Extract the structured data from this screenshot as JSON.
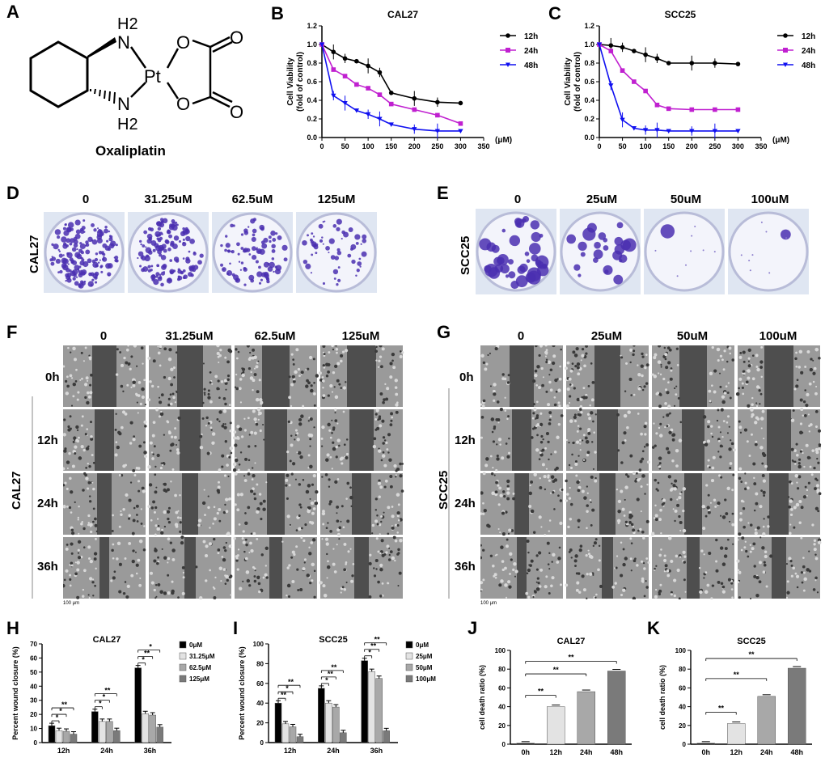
{
  "panel_labels": {
    "A": "A",
    "B": "B",
    "C": "C",
    "D": "D",
    "E": "E",
    "F": "F",
    "G": "G",
    "H": "H",
    "I": "I",
    "J": "J",
    "K": "K"
  },
  "structure": {
    "compound_name": "Oxaliplatin",
    "atoms": {
      "nh2_top": "H2",
      "n_top": "N",
      "nh2_bottom": "H2",
      "n_bottom": "N",
      "pt": "Pt",
      "o1": "O",
      "o2": "O",
      "o3": "O",
      "o4": "O"
    }
  },
  "chart_data": [
    {
      "id": "B",
      "type": "line",
      "title": "CAL27",
      "xlabel": "(μM)",
      "ylabel": "Cell Viability\n(fold of control)",
      "xlim": [
        0,
        350
      ],
      "ylim": [
        0,
        1.2
      ],
      "xticks": [
        "0",
        "50",
        "100",
        "150",
        "200",
        "250",
        "300",
        "350"
      ],
      "yticks": [
        "0.0",
        "0.2",
        "0.4",
        "0.6",
        "0.8",
        "1.0",
        "1.2"
      ],
      "legend": "right",
      "x": [
        0,
        25,
        50,
        75,
        100,
        125,
        150,
        200,
        250,
        300
      ],
      "series": [
        {
          "name": "12h",
          "color": "#000000",
          "marker": "circle",
          "values": [
            1.0,
            0.92,
            0.85,
            0.82,
            0.77,
            0.7,
            0.48,
            0.42,
            0.38,
            0.37
          ]
        },
        {
          "name": "24h",
          "color": "#c020d0",
          "marker": "square",
          "values": [
            1.0,
            0.73,
            0.66,
            0.57,
            0.53,
            0.46,
            0.36,
            0.3,
            0.24,
            0.15
          ]
        },
        {
          "name": "48h",
          "color": "#1010f0",
          "marker": "triangle",
          "values": [
            1.0,
            0.45,
            0.37,
            0.29,
            0.25,
            0.2,
            0.14,
            0.09,
            0.07,
            0.07
          ]
        }
      ]
    },
    {
      "id": "C",
      "type": "line",
      "title": "SCC25",
      "xlabel": "(μM)",
      "ylabel": "Cell Viability\n(fold of control)",
      "xlim": [
        0,
        350
      ],
      "ylim": [
        0,
        1.2
      ],
      "xticks": [
        "0",
        "50",
        "100",
        "150",
        "200",
        "250",
        "300",
        "350"
      ],
      "yticks": [
        "0.0",
        "0.2",
        "0.4",
        "0.6",
        "0.8",
        "1.0",
        "1.2"
      ],
      "legend": "right",
      "x": [
        0,
        25,
        50,
        75,
        100,
        125,
        150,
        200,
        250,
        300
      ],
      "series": [
        {
          "name": "12h",
          "color": "#000000",
          "marker": "circle",
          "values": [
            1.0,
            0.99,
            0.97,
            0.93,
            0.89,
            0.85,
            0.8,
            0.8,
            0.8,
            0.79
          ]
        },
        {
          "name": "24h",
          "color": "#c020d0",
          "marker": "square",
          "values": [
            1.0,
            0.93,
            0.72,
            0.6,
            0.5,
            0.35,
            0.31,
            0.3,
            0.3,
            0.3
          ]
        },
        {
          "name": "48h",
          "color": "#1010f0",
          "marker": "triangle",
          "values": [
            1.0,
            0.56,
            0.19,
            0.1,
            0.08,
            0.08,
            0.07,
            0.07,
            0.07,
            0.07
          ]
        }
      ]
    },
    {
      "id": "H",
      "type": "bar",
      "title": "CAL27",
      "ylabel": "Percent wound closure (%)",
      "ylim": [
        0,
        70
      ],
      "yticks": [
        "0",
        "10",
        "20",
        "30",
        "40",
        "50",
        "60",
        "70"
      ],
      "categories": [
        "12h",
        "24h",
        "36h"
      ],
      "legend": "right",
      "series": [
        {
          "name": "0μM",
          "color": "#000000",
          "values": [
            12,
            22,
            53
          ]
        },
        {
          "name": "31.25μM",
          "color": "#e3e3e3",
          "values": [
            8.5,
            15,
            20.5
          ]
        },
        {
          "name": "62.5μM",
          "color": "#a8a8a8",
          "values": [
            8,
            15,
            19.5
          ]
        },
        {
          "name": "125μM",
          "color": "#7a7a7a",
          "values": [
            6,
            8.5,
            11
          ]
        }
      ],
      "significance": [
        "*",
        "*",
        "**",
        "*",
        "*",
        "**",
        "*",
        "**",
        "*"
      ]
    },
    {
      "id": "I",
      "type": "bar",
      "title": "SCC25",
      "ylabel": "Percent wound closure (%)",
      "ylim": [
        0,
        100
      ],
      "yticks": [
        "0",
        "20",
        "40",
        "60",
        "80",
        "100"
      ],
      "categories": [
        "12h",
        "24h",
        "36h"
      ],
      "legend": "right",
      "series": [
        {
          "name": "0μM",
          "color": "#000000",
          "values": [
            40,
            55,
            83
          ]
        },
        {
          "name": "25μM",
          "color": "#e3e3e3",
          "values": [
            19,
            40,
            72
          ]
        },
        {
          "name": "50μM",
          "color": "#a8a8a8",
          "values": [
            16,
            36,
            65
          ]
        },
        {
          "name": "100μM",
          "color": "#7a7a7a",
          "values": [
            6,
            10,
            12
          ]
        }
      ],
      "significance": [
        "**",
        "*",
        "**",
        "*",
        "**",
        "**",
        "*",
        "**",
        "**"
      ]
    },
    {
      "id": "J",
      "type": "bar",
      "title": "CAL27",
      "ylabel": "cell death ratio (%)",
      "ylim": [
        0,
        100
      ],
      "yticks": [
        "0",
        "20",
        "40",
        "60",
        "80",
        "100"
      ],
      "categories": [
        "0h",
        "12h",
        "24h",
        "48h"
      ],
      "values": [
        1,
        40,
        56,
        78
      ],
      "colors": [
        "#000000",
        "#e3e3e3",
        "#a8a8a8",
        "#7a7a7a"
      ],
      "significance": [
        "**",
        "**",
        "**"
      ]
    },
    {
      "id": "K",
      "type": "bar",
      "title": "SCC25",
      "ylabel": "cell death ratio (%)",
      "ylim": [
        0,
        100
      ],
      "yticks": [
        "0",
        "20",
        "40",
        "60",
        "80",
        "100"
      ],
      "categories": [
        "0h",
        "12h",
        "24h",
        "48h"
      ],
      "values": [
        1,
        22,
        51,
        81
      ],
      "colors": [
        "#000000",
        "#e3e3e3",
        "#a8a8a8",
        "#7a7a7a"
      ],
      "significance": [
        "**",
        "**",
        "**"
      ]
    }
  ],
  "colony_D": {
    "cell_line": "CAL27",
    "doses": [
      "0",
      "31.25uM",
      "62.5uM",
      "125uM"
    ],
    "density": [
      1.0,
      0.85,
      0.55,
      0.35
    ],
    "stain_color": "#4a2fb0"
  },
  "colony_E": {
    "cell_line": "SCC25",
    "doses": [
      "0",
      "25uM",
      "50uM",
      "100uM"
    ],
    "density": [
      1.0,
      0.6,
      0.03,
      0.02
    ],
    "stain_color": "#4a2fb0"
  },
  "wound_F": {
    "cell_line": "CAL27",
    "doses": [
      "0",
      "31.25uM",
      "62.5uM",
      "125uM"
    ],
    "times": [
      "0h",
      "12h",
      "24h",
      "36h"
    ],
    "scale_bar": "100 μm"
  },
  "wound_G": {
    "cell_line": "SCC25",
    "doses": [
      "0",
      "25uM",
      "50uM",
      "100uM"
    ],
    "times": [
      "0h",
      "12h",
      "24h",
      "36h"
    ],
    "scale_bar": "100 μm"
  }
}
